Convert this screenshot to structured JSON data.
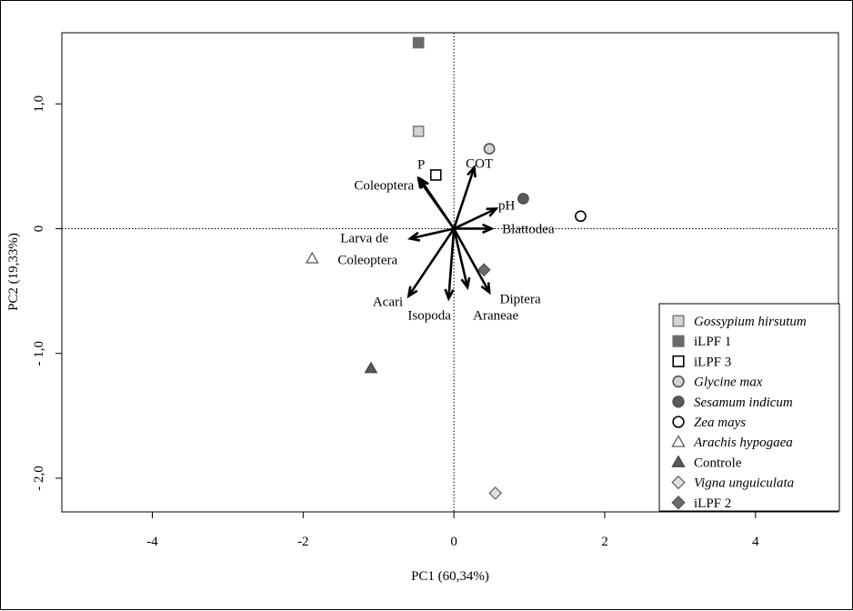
{
  "chart_data": {
    "type": "scatter",
    "xlabel": "PC1 (60,34%)",
    "ylabel": "PC2 (19,33%)",
    "xlim": [
      -5.2,
      5.1
    ],
    "ylim": [
      -2.27,
      1.57
    ],
    "x_ticks": [
      {
        "value": -4,
        "label": "-4"
      },
      {
        "value": -2,
        "label": "-2"
      },
      {
        "value": 0,
        "label": "0"
      },
      {
        "value": 2,
        "label": "2"
      },
      {
        "value": 4,
        "label": "4"
      }
    ],
    "y_ticks": [
      {
        "value": 1.0,
        "label": "1,0"
      },
      {
        "value": 0,
        "label": "0"
      },
      {
        "value": -1.0,
        "label": "- 1,0"
      },
      {
        "value": -2.0,
        "label": "- 2,0"
      }
    ],
    "reference_lines": {
      "x": 0,
      "y": 0,
      "style": "dotted"
    },
    "series": [
      {
        "name": "Gossypium hirsutum",
        "italic": true,
        "marker": "square",
        "color": "#d4d4d4",
        "stroke": "#808080",
        "x": [
          -0.47
        ],
        "y": [
          0.78
        ]
      },
      {
        "name": "iLPF 1",
        "italic": false,
        "marker": "square",
        "color": "#6b6b6b",
        "stroke": "#6b6b6b",
        "x": [
          -0.47
        ],
        "y": [
          1.49
        ]
      },
      {
        "name": "iLPF 3",
        "italic": false,
        "marker": "square",
        "color": "#ffffff",
        "stroke": "#000000",
        "x": [
          -0.24
        ],
        "y": [
          0.43
        ]
      },
      {
        "name": "Glycine max",
        "italic": true,
        "marker": "circle",
        "color": "#d4d4d4",
        "stroke": "#505050",
        "x": [
          0.47
        ],
        "y": [
          0.64
        ]
      },
      {
        "name": "Sesamum indicum",
        "italic": true,
        "marker": "circle",
        "color": "#595959",
        "stroke": "#505050",
        "x": [
          0.92
        ],
        "y": [
          0.24
        ]
      },
      {
        "name": "Zea mays",
        "italic": true,
        "marker": "circle",
        "color": "#ffffff",
        "stroke": "#000000",
        "x": [
          1.68
        ],
        "y": [
          0.1
        ]
      },
      {
        "name": "Arachis hypogaea",
        "italic": true,
        "marker": "triangle",
        "color": "#ffffff",
        "stroke": "#505050",
        "x": [
          -1.88
        ],
        "y": [
          -0.24
        ]
      },
      {
        "name": "Controle",
        "italic": false,
        "marker": "triangle",
        "color": "#595959",
        "stroke": "#404040",
        "x": [
          -1.1
        ],
        "y": [
          -1.12
        ]
      },
      {
        "name": "Vigna unguiculata",
        "italic": true,
        "marker": "diamond",
        "color": "#e0e0e0",
        "stroke": "#606060",
        "x": [
          0.55
        ],
        "y": [
          -2.12
        ]
      },
      {
        "name": "iLPF 2",
        "italic": false,
        "marker": "diamond",
        "color": "#6b6b6b",
        "stroke": "#505050",
        "x": [
          0.4
        ],
        "y": [
          -0.33
        ]
      }
    ],
    "vectors": [
      {
        "name": "P",
        "x": -0.45,
        "y": 0.4
      },
      {
        "name": "COT",
        "x": 0.27,
        "y": 0.49
      },
      {
        "name": "Coleoptera",
        "x": -0.47,
        "y": 0.4
      },
      {
        "name": "pH",
        "x": 0.56,
        "y": 0.16
      },
      {
        "name": "Blattodea",
        "x": 0.5,
        "y": 0.0
      },
      {
        "name": "Larva de Coleoptera",
        "x": -0.58,
        "y": -0.08
      },
      {
        "name": "Acari",
        "x": -0.6,
        "y": -0.54
      },
      {
        "name": "Isopoda",
        "x": -0.07,
        "y": -0.56
      },
      {
        "name": "Araneae",
        "x": 0.18,
        "y": -0.47
      },
      {
        "name": "Diptera",
        "x": 0.47,
        "y": -0.51
      }
    ],
    "legend": {
      "position": "bottom-right"
    }
  }
}
